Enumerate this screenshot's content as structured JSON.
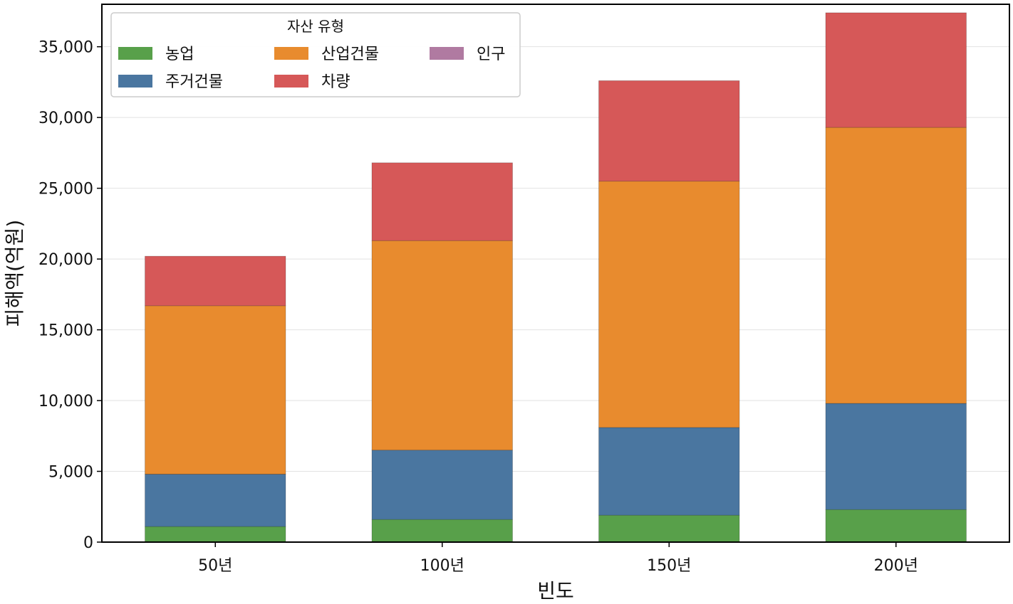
{
  "chart_data": {
    "type": "bar",
    "stacked": true,
    "title": "",
    "xlabel": "빈도",
    "ylabel": "피해액(억원)",
    "categories": [
      "50년",
      "100년",
      "150년",
      "200년"
    ],
    "ylim": [
      0,
      38000
    ],
    "yticks": [
      0,
      5000,
      10000,
      15000,
      20000,
      25000,
      30000,
      35000
    ],
    "ytick_labels": [
      "0",
      "5,000",
      "10,000",
      "15,000",
      "20,000",
      "25,000",
      "30,000",
      "35,000"
    ],
    "grid": "horizontal",
    "legend": {
      "title": "자산 유형",
      "placement": "top-left",
      "columns": 3
    },
    "series": [
      {
        "name": "농업",
        "color": "#58a04a",
        "values": [
          1100,
          1600,
          1900,
          2300
        ]
      },
      {
        "name": "주거건물",
        "color": "#4a76a0",
        "values": [
          3700,
          4900,
          6200,
          7500
        ]
      },
      {
        "name": "산업건물",
        "color": "#e88b2e",
        "values": [
          11900,
          14800,
          17400,
          19500
        ]
      },
      {
        "name": "차량",
        "color": "#d65858",
        "values": [
          3500,
          5500,
          7100,
          8100
        ]
      },
      {
        "name": "인구",
        "color": "#b07aa1",
        "values": [
          0,
          0,
          0,
          0
        ]
      }
    ]
  }
}
